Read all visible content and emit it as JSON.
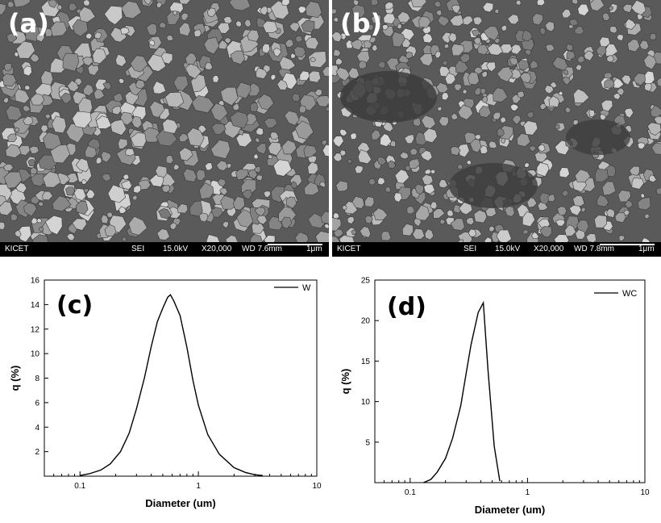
{
  "sem_panels": [
    {
      "label": "(a)",
      "bar": {
        "lab": "KICET",
        "detector": "SEI",
        "voltage": "15.0kV",
        "mag": "X20,000",
        "wd": "WD 7.6mm",
        "scale": "1μm"
      }
    },
    {
      "label": "(b)",
      "bar": {
        "lab": "KICET",
        "detector": "SEI",
        "voltage": "15.0kV",
        "mag": "X20,000",
        "wd": "WD 7.8mm",
        "scale": "1μm"
      }
    }
  ],
  "colors": {
    "sem_background": "#5a5a5a",
    "sem_particles": "#a8a8a8",
    "sem_bar": "#000000",
    "line": "#000000"
  },
  "chart_data": [
    {
      "type": "line",
      "panel_label": "(c)",
      "xlabel": "Diameter (um)",
      "ylabel": "q (%)",
      "x_scale": "log",
      "xlim": [
        0.05,
        10
      ],
      "ylim": [
        0,
        16
      ],
      "x_ticks": [
        0.1,
        1,
        10
      ],
      "x_tick_labels": [
        "0.1",
        "1",
        "10"
      ],
      "y_ticks": [
        2,
        4,
        6,
        8,
        10,
        12,
        14,
        16
      ],
      "y_tick_labels": [
        "2",
        "4",
        "6",
        "8",
        "10",
        "12",
        "14",
        "16"
      ],
      "legend_position": "top-right",
      "grid": false,
      "series": [
        {
          "name": "W",
          "x": [
            0.1,
            0.12,
            0.15,
            0.18,
            0.22,
            0.26,
            0.3,
            0.35,
            0.4,
            0.45,
            0.5,
            0.55,
            0.58,
            0.62,
            0.7,
            0.8,
            0.9,
            1.0,
            1.2,
            1.5,
            2.0,
            2.5,
            3.0,
            3.5
          ],
          "y": [
            0.05,
            0.2,
            0.5,
            1.0,
            2.0,
            3.5,
            5.5,
            8.0,
            10.6,
            12.6,
            13.7,
            14.6,
            14.8,
            14.3,
            13.1,
            10.5,
            7.8,
            5.8,
            3.4,
            1.8,
            0.7,
            0.3,
            0.12,
            0.05
          ]
        }
      ]
    },
    {
      "type": "line",
      "panel_label": "(d)",
      "xlabel": "Diameter (um)",
      "ylabel": "q (%)",
      "x_scale": "log",
      "xlim": [
        0.05,
        10
      ],
      "ylim": [
        0,
        25
      ],
      "x_ticks": [
        0.1,
        1,
        10
      ],
      "x_tick_labels": [
        "0.1",
        "1",
        "10"
      ],
      "y_ticks": [
        5,
        10,
        15,
        20,
        25
      ],
      "y_tick_labels": [
        "5",
        "10",
        "15",
        "20",
        "25"
      ],
      "legend_position": "top-right",
      "grid": false,
      "series": [
        {
          "name": "WC",
          "x": [
            0.13,
            0.15,
            0.17,
            0.2,
            0.23,
            0.27,
            0.3,
            0.33,
            0.38,
            0.42,
            0.46,
            0.52,
            0.58
          ],
          "y": [
            0.0,
            0.4,
            1.3,
            3.0,
            5.5,
            9.5,
            13.5,
            17.0,
            21.0,
            22.2,
            14.0,
            4.5,
            0.2
          ]
        }
      ]
    }
  ]
}
